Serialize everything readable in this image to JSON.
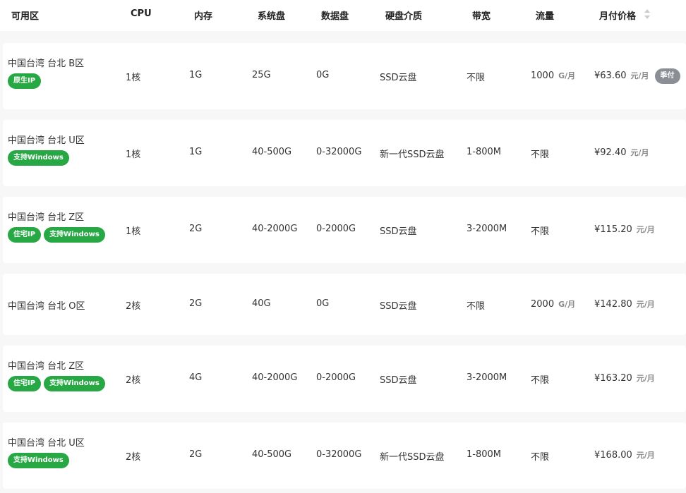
{
  "columns": [
    "可用区",
    "CPU",
    "内存",
    "系统盘",
    "数据盘",
    "硬盘介质",
    "带宽",
    "流量",
    "月付价格"
  ],
  "colors": {
    "tag_green": "#28a745",
    "badge_gray": "#8a8f96"
  },
  "rows": [
    {
      "zone": "中国台湾 台北 B区",
      "tags": [
        "原生IP"
      ],
      "cpu": "1核",
      "mem": "1G",
      "sys": "25G",
      "data": "0G",
      "media": "SSD云盘",
      "bw": "不限",
      "traffic": "1000",
      "traffic_unit": "G/月",
      "price": "¥63.60",
      "price_unit": "元/月",
      "badge": "季付"
    },
    {
      "zone": "中国台湾 台北 U区",
      "tags": [
        "支持Windows"
      ],
      "cpu": "1核",
      "mem": "1G",
      "sys": "40-500G",
      "data": "0-32000G",
      "media": "新一代SSD云盘",
      "bw": "1-800M",
      "traffic": "不限",
      "traffic_unit": "",
      "price": "¥92.40",
      "price_unit": "元/月"
    },
    {
      "zone": "中国台湾 台北 Z区",
      "tags": [
        "住宅IP",
        "支持Windows"
      ],
      "cpu": "1核",
      "mem": "2G",
      "sys": "40-2000G",
      "data": "0-2000G",
      "media": "SSD云盘",
      "bw": "3-2000M",
      "traffic": "不限",
      "traffic_unit": "",
      "price": "¥115.20",
      "price_unit": "元/月"
    },
    {
      "zone": "中国台湾 台北 O区",
      "tags": [],
      "cpu": "2核",
      "mem": "2G",
      "sys": "40G",
      "data": "0G",
      "media": "SSD云盘",
      "bw": "不限",
      "traffic": "2000",
      "traffic_unit": "G/月",
      "price": "¥142.80",
      "price_unit": "元/月"
    },
    {
      "zone": "中国台湾 台北 Z区",
      "tags": [
        "住宅IP",
        "支持Windows"
      ],
      "cpu": "2核",
      "mem": "4G",
      "sys": "40-2000G",
      "data": "0-2000G",
      "media": "SSD云盘",
      "bw": "3-2000M",
      "traffic": "不限",
      "traffic_unit": "",
      "price": "¥163.20",
      "price_unit": "元/月"
    },
    {
      "zone": "中国台湾 台北 U区",
      "tags": [
        "支持Windows"
      ],
      "cpu": "2核",
      "mem": "2G",
      "sys": "40-500G",
      "data": "0-32000G",
      "media": "新一代SSD云盘",
      "bw": "1-800M",
      "traffic": "不限",
      "traffic_unit": "",
      "price": "¥168.00",
      "price_unit": "元/月"
    }
  ]
}
